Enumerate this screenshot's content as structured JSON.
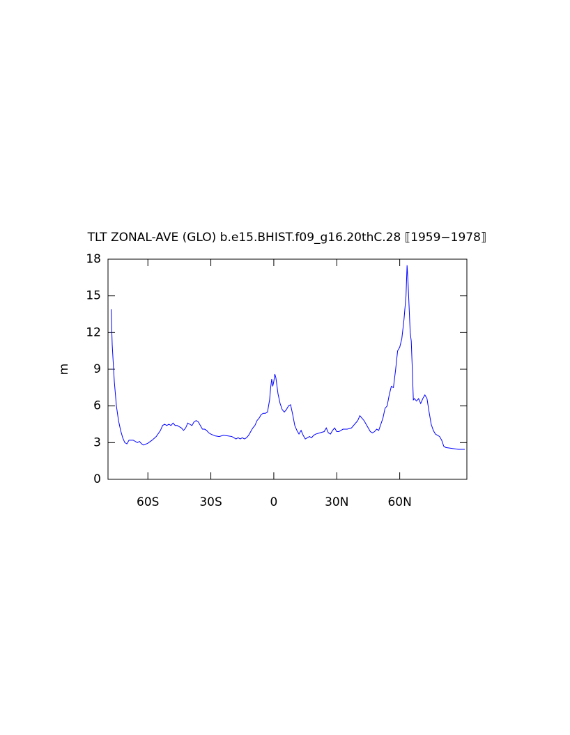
{
  "chart_data": {
    "type": "line",
    "title": "TLT ZONAL-AVE (GLO) b.e15.BHIST.f09_g16.20thC.28 ⟦1959−1978⟧",
    "y_label": "m",
    "xlim": [
      -79,
      92
    ],
    "ylim": [
      0,
      18
    ],
    "xticks": [
      {
        "value": -60,
        "label": "60S"
      },
      {
        "value": -30,
        "label": "30S"
      },
      0,
      {
        "value": 30,
        "label": "30N"
      },
      {
        "value": 60,
        "label": "60N"
      }
    ],
    "yticks": [
      0,
      3,
      6,
      9,
      12,
      15,
      18
    ],
    "grid": false,
    "series": [
      {
        "color": "#0000ff",
        "x": [
          -77.5,
          -77,
          -76,
          -75,
          -74,
          -73,
          -72,
          -71,
          -70,
          -69,
          -67,
          -65,
          -64,
          -63,
          -62,
          -60,
          -58,
          -56,
          -54,
          -53,
          -52,
          -51,
          -50,
          -49,
          -48,
          -47,
          -46,
          -45,
          -44,
          -43,
          -42,
          -41,
          -40,
          -39,
          -38,
          -37,
          -36,
          -35,
          -34,
          -33,
          -32,
          -31,
          -30,
          -28,
          -26,
          -24,
          -22,
          -20,
          -19,
          -18,
          -17,
          -16,
          -15,
          -14,
          -13,
          -12,
          -11,
          -10,
          -9,
          -8,
          -7,
          -6,
          -5,
          -4,
          -3,
          -2,
          -1.5,
          -1,
          -0.5,
          0,
          0.5,
          1,
          2,
          3,
          4,
          5,
          6,
          7,
          8,
          9,
          10,
          11,
          12,
          13,
          14,
          15,
          16,
          17,
          18,
          19,
          20,
          22,
          24,
          25,
          26,
          27,
          28,
          29,
          30,
          31,
          33,
          35,
          37,
          38,
          39,
          40,
          41,
          42,
          43,
          44,
          45,
          46,
          47,
          48,
          49,
          50,
          51,
          52,
          53,
          54,
          55,
          56,
          57,
          58,
          59,
          60,
          61,
          62,
          63,
          63.5,
          64,
          65,
          65.5,
          66,
          66.5,
          67,
          68,
          69,
          70,
          71,
          72,
          73,
          74,
          75,
          76,
          77,
          78,
          79,
          80,
          81,
          82,
          84,
          86,
          88,
          90,
          91
        ],
        "values": [
          13.9,
          11,
          8,
          6,
          4.8,
          4,
          3.4,
          3.0,
          2.9,
          3.2,
          3.2,
          3.0,
          3.1,
          2.9,
          2.8,
          2.95,
          3.2,
          3.5,
          4.0,
          4.4,
          4.5,
          4.4,
          4.5,
          4.4,
          4.6,
          4.4,
          4.4,
          4.3,
          4.2,
          4.0,
          4.2,
          4.6,
          4.5,
          4.4,
          4.7,
          4.8,
          4.7,
          4.4,
          4.1,
          4.1,
          4.0,
          3.8,
          3.7,
          3.55,
          3.5,
          3.6,
          3.55,
          3.5,
          3.4,
          3.3,
          3.4,
          3.3,
          3.4,
          3.3,
          3.4,
          3.6,
          3.9,
          4.2,
          4.4,
          4.8,
          5.0,
          5.3,
          5.4,
          5.4,
          5.5,
          6.5,
          7.5,
          8.2,
          7.6,
          8.0,
          8.6,
          8.3,
          7.0,
          6.2,
          5.7,
          5.5,
          5.7,
          6.0,
          6.1,
          5.3,
          4.4,
          4.0,
          3.7,
          4.0,
          3.6,
          3.3,
          3.4,
          3.5,
          3.4,
          3.6,
          3.7,
          3.8,
          3.9,
          4.2,
          3.8,
          3.7,
          4.0,
          4.2,
          3.9,
          3.9,
          4.1,
          4.1,
          4.2,
          4.4,
          4.6,
          4.8,
          5.2,
          5.0,
          4.8,
          4.5,
          4.2,
          3.9,
          3.8,
          3.9,
          4.1,
          4.0,
          4.5,
          5.0,
          5.8,
          6.0,
          6.9,
          7.6,
          7.5,
          8.9,
          10.5,
          10.8,
          11.5,
          13,
          15,
          17.5,
          16,
          12,
          11.3,
          9,
          6.5,
          6.6,
          6.4,
          6.6,
          6.2,
          6.6,
          6.9,
          6.6,
          5.5,
          4.5,
          4.0,
          3.7,
          3.6,
          3.5,
          3.2,
          2.7,
          2.6,
          2.55,
          2.5,
          2.45,
          2.45,
          2.45
        ]
      }
    ]
  }
}
